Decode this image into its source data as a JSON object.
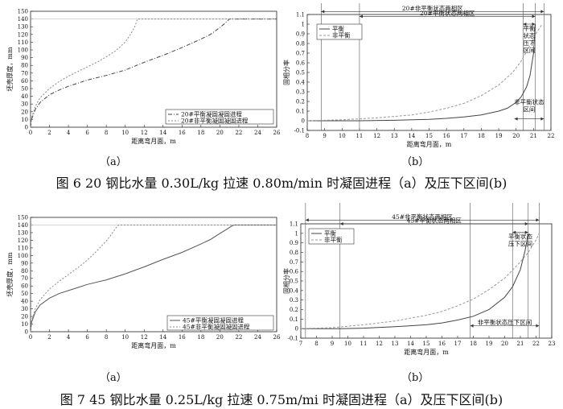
{
  "chart_data": [
    {
      "type": "line",
      "xlabel": "距离弯月面，m",
      "ylabel": "坯壳厚度，mm",
      "xlim": [
        0,
        26
      ],
      "ylim": [
        0,
        150
      ],
      "xticks": [
        0,
        2,
        4,
        6,
        8,
        10,
        12,
        14,
        16,
        18,
        20,
        22,
        24,
        26
      ],
      "yticks": [
        0,
        10,
        20,
        30,
        40,
        50,
        60,
        70,
        80,
        90,
        100,
        110,
        120,
        130,
        140,
        150
      ],
      "legend": "bottom-right",
      "series": [
        {
          "name": "20#平衡凝固凝固进程",
          "color": "#444444",
          "dash": "5,2,1,2",
          "x": [
            0,
            0.1,
            0.5,
            1,
            2,
            3,
            4,
            5,
            6,
            8,
            10,
            12,
            14,
            16,
            18,
            19,
            20,
            20.6,
            21,
            21.1,
            26
          ],
          "y": [
            0,
            10,
            23,
            32,
            42,
            48,
            53,
            57,
            61,
            67,
            74,
            84,
            93,
            103,
            114,
            120,
            129,
            135,
            140,
            140,
            140
          ]
        },
        {
          "name": "20#非平衡凝固凝固进程",
          "color": "#888888",
          "dash": "2,2",
          "x": [
            0,
            0.1,
            0.5,
            1,
            2,
            3,
            4,
            5,
            6,
            7,
            8,
            9,
            10,
            10.5,
            11,
            11.3,
            26
          ],
          "y": [
            0,
            12,
            27,
            38,
            50,
            59,
            66,
            72,
            78,
            84,
            91,
            99,
            110,
            119,
            130,
            140,
            140
          ]
        }
      ]
    },
    {
      "type": "line",
      "xlabel": "距离弯月面，m",
      "ylabel": "固相分率",
      "xlim": [
        8,
        22
      ],
      "ylim": [
        -0.1,
        1.1
      ],
      "xticks": [
        8,
        9,
        10,
        11,
        12,
        13,
        14,
        15,
        16,
        17,
        18,
        19,
        20,
        21,
        22
      ],
      "yticks": [
        -0.1,
        0.0,
        0.1,
        0.2,
        0.3,
        0.4,
        0.5,
        0.6,
        0.7,
        0.8,
        0.9,
        1.0,
        1.1
      ],
      "legend": "top-left",
      "series": [
        {
          "name": "平衡",
          "color": "#444444",
          "dash": "",
          "x": [
            8,
            11,
            13,
            15,
            16,
            17,
            18,
            19,
            19.5,
            20,
            20.3,
            20.6,
            20.8,
            21.0,
            21.1
          ],
          "y": [
            0,
            0,
            0.005,
            0.015,
            0.025,
            0.04,
            0.06,
            0.1,
            0.13,
            0.19,
            0.25,
            0.35,
            0.47,
            0.7,
            1.0
          ]
        },
        {
          "name": "非平衡",
          "color": "#999999",
          "dash": "3,2",
          "x": [
            8,
            10,
            12,
            14,
            15,
            16,
            17,
            18,
            19,
            19.8,
            20.3,
            20.8,
            21.2,
            21.5
          ],
          "y": [
            0,
            0.01,
            0.03,
            0.06,
            0.09,
            0.13,
            0.18,
            0.26,
            0.37,
            0.5,
            0.62,
            0.78,
            0.92,
            1.0
          ]
        }
      ],
      "annotations": [
        {
          "text": "20#非平衡状态两相区",
          "x1": 8.8,
          "x2": 21.6,
          "y": 1.13
        },
        {
          "text": "20#平衡状态两相区",
          "x1": 11.0,
          "x2": 21.1,
          "y": 1.08
        },
        {
          "text": "平衡状态压下区间",
          "lines": [
            "平衡",
            "状态",
            "压下",
            "区间"
          ],
          "x1": 20.4,
          "x2": 21.1,
          "y": 1.0
        },
        {
          "text": "非平衡状态压下区间",
          "lines": [
            "非平衡状态",
            "区间"
          ],
          "x1": 19.9,
          "x2": 21.6,
          "y": 0.02
        }
      ],
      "vlines": [
        8.8,
        11.0,
        20.4,
        21.1,
        21.6
      ]
    },
    {
      "type": "line",
      "xlabel": "距离弯月面，m",
      "ylabel": "坯壳厚度，mm",
      "xlim": [
        0,
        26
      ],
      "ylim": [
        0,
        150
      ],
      "xticks": [
        0,
        2,
        4,
        6,
        8,
        10,
        12,
        14,
        16,
        18,
        20,
        22,
        24,
        26
      ],
      "yticks": [
        0,
        10,
        20,
        30,
        40,
        50,
        60,
        70,
        80,
        90,
        100,
        110,
        120,
        130,
        140,
        150
      ],
      "legend": "bottom-right",
      "series": [
        {
          "name": "45#平衡凝固凝固进程",
          "color": "#555555",
          "dash": "",
          "x": [
            0,
            0.1,
            0.5,
            1,
            2,
            3,
            4,
            5,
            6,
            8,
            10,
            12,
            14,
            16,
            18,
            19,
            20,
            20.8,
            21.3,
            21.5,
            26
          ],
          "y": [
            0,
            12,
            26,
            35,
            44,
            50,
            54,
            58,
            62,
            68,
            76,
            85,
            95,
            104,
            115,
            121,
            129,
            135,
            139,
            140,
            140
          ]
        },
        {
          "name": "45#非平衡凝固凝固进程",
          "color": "#888888",
          "dash": "2,2",
          "x": [
            0,
            0.1,
            0.5,
            1,
            2,
            3,
            4,
            5,
            6,
            7,
            8,
            8.5,
            9,
            9.3,
            26
          ],
          "y": [
            0,
            14,
            30,
            42,
            56,
            66,
            75,
            84,
            94,
            106,
            119,
            127,
            136,
            140,
            140
          ]
        }
      ]
    },
    {
      "type": "line",
      "xlabel": "距离弯月面，m",
      "ylabel": "固相分率",
      "xlim": [
        7,
        23
      ],
      "ylim": [
        -0.1,
        1.1
      ],
      "xticks": [
        7,
        8,
        9,
        10,
        11,
        12,
        13,
        14,
        15,
        16,
        17,
        18,
        19,
        20,
        21,
        22,
        23
      ],
      "yticks": [
        -0.1,
        0.0,
        0.1,
        0.2,
        0.3,
        0.4,
        0.5,
        0.6,
        0.7,
        0.8,
        0.9,
        1.0,
        1.1
      ],
      "legend": "top-left",
      "series": [
        {
          "name": "平衡",
          "color": "#444444",
          "dash": "",
          "x": [
            7,
            9.5,
            11,
            13,
            15,
            16,
            17,
            18,
            19,
            20,
            20.5,
            21,
            21.3,
            21.5
          ],
          "y": [
            0,
            0,
            0.005,
            0.02,
            0.04,
            0.06,
            0.09,
            0.13,
            0.2,
            0.33,
            0.44,
            0.62,
            0.82,
            1.0
          ]
        },
        {
          "name": "非平衡",
          "color": "#999999",
          "dash": "3,2",
          "x": [
            7,
            9,
            11,
            13,
            15,
            16,
            17,
            18,
            19,
            20,
            21,
            21.5,
            22.0,
            22.2
          ],
          "y": [
            0,
            0.01,
            0.04,
            0.08,
            0.14,
            0.18,
            0.24,
            0.31,
            0.41,
            0.53,
            0.7,
            0.8,
            0.93,
            1.0
          ]
        }
      ],
      "annotations": [
        {
          "text": "45#非平衡状态两相区",
          "x1": 7.3,
          "x2": 22.2,
          "y": 1.14
        },
        {
          "text": "45#平衡状态两相区",
          "x1": 9.5,
          "x2": 21.5,
          "y": 1.1
        },
        {
          "text": "平衡状态压下区间",
          "lines": [
            "平衡状态",
            "压下区间"
          ],
          "x1": 20.5,
          "x2": 21.5,
          "y": 1.01
        },
        {
          "text": "非平衡状态压下区间",
          "x1": 17.8,
          "x2": 22.2,
          "y": 0.03
        }
      ],
      "vlines": [
        7.3,
        9.5,
        17.8,
        20.5,
        21.5,
        22.2
      ]
    }
  ],
  "sublabels": [
    "（a）",
    "（b）",
    "（a）",
    "（b）"
  ],
  "captions": [
    "图 6 20 钢比水量 0.30L/kg 拉速 0.80m/min 时凝固进程（a）及压下区间(b)",
    "图 7 45 钢比水量 0.25L/kg 拉速 0.75m/mi 时凝固进程（a）及压下区间(b)"
  ]
}
